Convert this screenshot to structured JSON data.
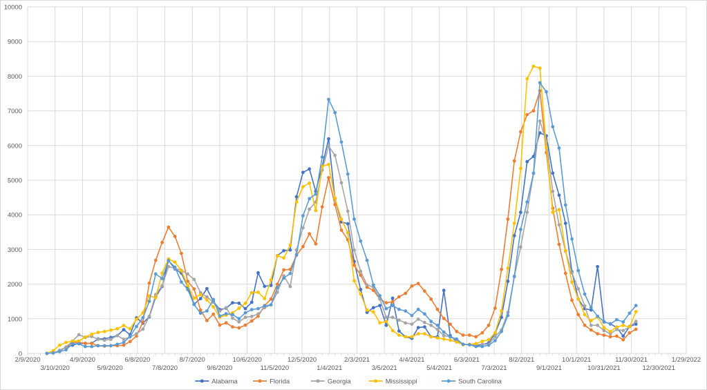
{
  "chart_data": {
    "type": "line",
    "title": "",
    "xlabel": "",
    "ylabel": "",
    "x_axis": {
      "type": "date",
      "range": [
        "2/9/2020",
        "1/29/2022"
      ],
      "tick_interval_days": 30,
      "tick_labels": [
        "2/9/2020",
        "3/10/2020",
        "4/9/2020",
        "5/9/2020",
        "6/8/2020",
        "7/8/2020",
        "8/7/2020",
        "9/6/2020",
        "10/6/2020",
        "11/5/2020",
        "12/5/2020",
        "1/4/2021",
        "2/3/2021",
        "3/5/2021",
        "4/4/2021",
        "5/4/2021",
        "6/3/2021",
        "7/3/2021",
        "8/2/2021",
        "9/1/2021",
        "10/1/2021",
        "10/31/2021",
        "11/30/2021",
        "12/30/2021",
        "1/29/2022"
      ]
    },
    "x_points": {
      "start": "3/1/2020",
      "step_days": 7,
      "count": 93
    },
    "ylim": [
      0,
      10000
    ],
    "y_tick_labels": [
      "0",
      "1000",
      "2000",
      "3000",
      "4000",
      "5000",
      "6000",
      "7000",
      "8000",
      "9000",
      "10000"
    ],
    "grid": true,
    "legend_position": "bottom",
    "series": [
      {
        "name": "Alabama",
        "color": "#4472C4",
        "values": [
          0,
          13,
          79,
          184,
          237,
          290,
          290,
          290,
          421,
          421,
          461,
          514,
          686,
          540,
          1028,
          870,
          1054,
          1634,
          1930,
          2688,
          2437,
          2319,
          1930,
          1423,
          1581,
          1870,
          1502,
          1265,
          1304,
          1462,
          1449,
          1291,
          1476,
          2326,
          1937,
          1963,
          2820,
          2964,
          2984,
          4520,
          5224,
          5322,
          4678,
          5400,
          6192,
          4466,
          3794,
          3741,
          2654,
          1844,
          1186,
          1318,
          1383,
          810,
          1594,
          646,
          481,
          435,
          745,
          765,
          481,
          481,
          1818,
          514,
          330,
          263,
          250,
          217,
          250,
          303,
          580,
          1041,
          2081,
          3399,
          4071,
          5534,
          5685,
          6364,
          6278,
          5204,
          4565,
          3755,
          2358,
          1568,
          1291,
          1252,
          2504,
          909,
          857,
          745,
          501,
          777,
          844
        ]
      },
      {
        "name": "Florida",
        "color": "#ED7D31",
        "values": [
          0,
          13,
          79,
          184,
          316,
          316,
          290,
          290,
          223,
          211,
          223,
          223,
          237,
          342,
          500,
          909,
          2030,
          2688,
          3202,
          3643,
          3379,
          2886,
          2081,
          1858,
          1251,
          949,
          1133,
          817,
          883,
          765,
          738,
          817,
          936,
          1074,
          1383,
          1568,
          1996,
          2411,
          2424,
          2833,
          3083,
          3452,
          3162,
          4229,
          5072,
          4295,
          3557,
          3281,
          2543,
          2259,
          1911,
          1818,
          1568,
          1462,
          1489,
          1634,
          1732,
          1944,
          2016,
          1798,
          1568,
          1271,
          1008,
          844,
          632,
          527,
          527,
          481,
          593,
          810,
          1304,
          2424,
          3874,
          5553,
          6397,
          6891,
          7002,
          7575,
          5797,
          4190,
          3148,
          2312,
          1535,
          1120,
          810,
          678,
          567,
          527,
          481,
          500,
          395,
          593,
          698
        ]
      },
      {
        "name": "Georgia",
        "color": "#A5A5A5",
        "values": [
          0,
          13,
          92,
          184,
          356,
          540,
          461,
          488,
          409,
          382,
          409,
          514,
          409,
          474,
          567,
          700,
          1073,
          1700,
          1950,
          2503,
          2457,
          2398,
          2292,
          2134,
          1752,
          1634,
          1476,
          1225,
          1318,
          1014,
          909,
          1041,
          1067,
          1140,
          1318,
          1403,
          1765,
          2240,
          1930,
          2984,
          3623,
          4164,
          4368,
          5290,
          5982,
          5718,
          4927,
          4105,
          2984,
          2371,
          1976,
          1911,
          1568,
          1041,
          1041,
          962,
          879,
          844,
          988,
          893,
          810,
          692,
          514,
          481,
          382,
          263,
          250,
          250,
          263,
          263,
          481,
          678,
          1186,
          2213,
          3069,
          4071,
          5191,
          6706,
          6113,
          4677,
          3709,
          2951,
          2326,
          1864,
          1370,
          810,
          810,
          659,
          567,
          692,
          659,
          765,
          923
        ]
      },
      {
        "name": "Mississippi",
        "color": "#FFC000",
        "values": [
          0,
          79,
          237,
          316,
          356,
          356,
          474,
          553,
          606,
          632,
          672,
          711,
          804,
          711,
          988,
          1172,
          1660,
          1607,
          2319,
          2727,
          2635,
          2385,
          1963,
          1594,
          1700,
          1542,
          1344,
          1041,
          1107,
          1172,
          1304,
          1449,
          1752,
          1765,
          1581,
          2121,
          2820,
          2753,
          3123,
          4368,
          4808,
          4914,
          4124,
          5401,
          5455,
          4480,
          3874,
          3478,
          2095,
          1713,
          1251,
          1199,
          883,
          923,
          658,
          527,
          481,
          481,
          567,
          567,
          481,
          448,
          415,
          382,
          330,
          250,
          263,
          283,
          349,
          395,
          593,
          1225,
          2457,
          3755,
          5336,
          7925,
          8287,
          8235,
          5949,
          4071,
          4150,
          2964,
          2062,
          1568,
          1120,
          943,
          1054,
          745,
          632,
          765,
          810,
          765,
          1206
        ]
      },
      {
        "name": "South Carolina",
        "color": "#5B9BD5",
        "values": [
          0,
          13,
          53,
          105,
          277,
          277,
          198,
          198,
          223,
          223,
          223,
          263,
          316,
          488,
          777,
          1030,
          1502,
          2292,
          2160,
          2675,
          2490,
          2062,
          1845,
          1410,
          1159,
          1225,
          1555,
          1080,
          1146,
          1120,
          1001,
          1172,
          1265,
          1291,
          1370,
          1403,
          1897,
          2174,
          2306,
          2846,
          3972,
          4466,
          4598,
          5666,
          7330,
          6950,
          6100,
          5178,
          3874,
          3241,
          2688,
          1976,
          1666,
          1291,
          1383,
          1271,
          1225,
          1093,
          1271,
          1140,
          922,
          810,
          613,
          481,
          415,
          263,
          250,
          197,
          197,
          237,
          369,
          632,
          1093,
          2227,
          3577,
          4368,
          5204,
          7812,
          7549,
          6542,
          5929,
          4282,
          3300,
          2391,
          1713,
          1318,
          1073,
          923,
          844,
          974,
          909,
          1160,
          1383
        ]
      }
    ]
  }
}
